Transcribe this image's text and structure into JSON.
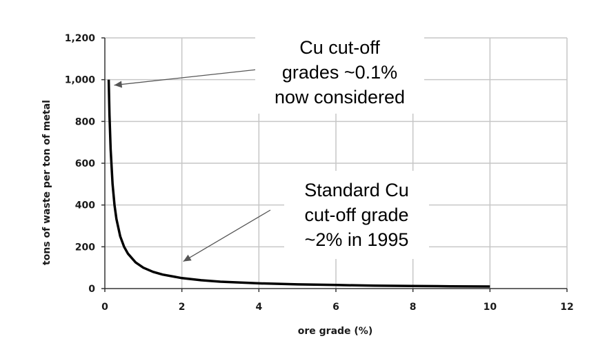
{
  "chart_data": {
    "type": "line",
    "xlabel": "ore grade (%)",
    "ylabel": "tons of waste per ton of metal",
    "xlim": [
      0,
      12
    ],
    "ylim": [
      0,
      1200
    ],
    "x_ticks": [
      0,
      2,
      4,
      6,
      8,
      10,
      12
    ],
    "x_tick_labels": [
      "0",
      "2",
      "4",
      "6",
      "8",
      "10",
      "12"
    ],
    "y_ticks": [
      0,
      200,
      400,
      600,
      800,
      1000,
      1200
    ],
    "y_tick_labels": [
      "0",
      "200",
      "400",
      "600",
      "800",
      "1,000",
      "1,200"
    ],
    "grid": true,
    "series": [
      {
        "color": "#000000",
        "x": [
          0.1,
          0.12,
          0.15,
          0.2,
          0.25,
          0.3,
          0.4,
          0.5,
          0.6,
          0.8,
          1,
          1.25,
          1.5,
          2,
          2.5,
          3,
          4,
          5,
          6,
          7,
          8,
          9,
          10
        ],
        "y": [
          1000,
          833,
          667,
          500,
          400,
          333,
          250,
          200,
          167,
          125,
          100,
          80,
          67,
          50,
          40,
          33,
          25,
          20,
          17,
          14,
          12.5,
          11,
          10
        ]
      }
    ],
    "annotations": [
      {
        "lines": [
          "Cu cut-off",
          "grades ~0.1%",
          "now considered"
        ],
        "target": [
          0.1,
          1000
        ]
      },
      {
        "lines": [
          "Standard Cu",
          "cut-off grade",
          "~2% in 1995"
        ],
        "target": [
          2,
          120
        ]
      }
    ]
  }
}
